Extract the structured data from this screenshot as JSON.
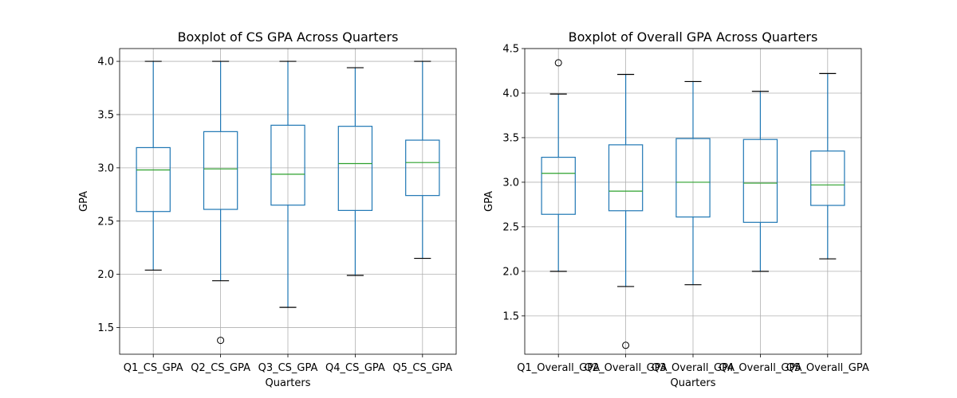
{
  "chart_data": [
    {
      "type": "boxplot",
      "title": "Boxplot of CS GPA Across Quarters",
      "xlabel": "Quarters",
      "ylabel": "GPA",
      "ylim": [
        1.25,
        4.12
      ],
      "yticks": [
        1.5,
        2.0,
        2.5,
        3.0,
        3.5,
        4.0
      ],
      "ytick_labels": [
        "1.5",
        "2.0",
        "2.5",
        "3.0",
        "3.5",
        "4.0"
      ],
      "grid": true,
      "categories": [
        "Q1_CS_GPA",
        "Q2_CS_GPA",
        "Q3_CS_GPA",
        "Q4_CS_GPA",
        "Q5_CS_GPA"
      ],
      "boxes": [
        {
          "whisker_low": 2.04,
          "q1": 2.59,
          "median": 2.98,
          "q3": 3.19,
          "whisker_high": 4.0,
          "outliers": []
        },
        {
          "whisker_low": 1.94,
          "q1": 2.61,
          "median": 2.99,
          "q3": 3.34,
          "whisker_high": 4.0,
          "outliers": [
            1.38
          ]
        },
        {
          "whisker_low": 1.69,
          "q1": 2.65,
          "median": 2.94,
          "q3": 3.4,
          "whisker_high": 4.0,
          "outliers": []
        },
        {
          "whisker_low": 1.99,
          "q1": 2.6,
          "median": 3.04,
          "q3": 3.39,
          "whisker_high": 3.94,
          "outliers": []
        },
        {
          "whisker_low": 2.15,
          "q1": 2.74,
          "median": 3.05,
          "q3": 3.26,
          "whisker_high": 4.0,
          "outliers": []
        }
      ]
    },
    {
      "type": "boxplot",
      "title": "Boxplot of Overall GPA Across Quarters",
      "xlabel": "Quarters",
      "ylabel": "GPA",
      "ylim": [
        1.07,
        4.5
      ],
      "yticks": [
        1.5,
        2.0,
        2.5,
        3.0,
        3.5,
        4.0,
        4.5
      ],
      "ytick_labels": [
        "1.5",
        "2.0",
        "2.5",
        "3.0",
        "3.5",
        "4.0",
        "4.5"
      ],
      "grid": true,
      "categories": [
        "Q1_Overall_GPA",
        "Q2_Overall_GPA",
        "Q3_Overall_GPA",
        "Q4_Overall_GPA",
        "Q5_Overall_GPA"
      ],
      "boxes": [
        {
          "whisker_low": 2.0,
          "q1": 2.64,
          "median": 3.1,
          "q3": 3.28,
          "whisker_high": 3.99,
          "outliers": [
            4.34
          ]
        },
        {
          "whisker_low": 1.83,
          "q1": 2.68,
          "median": 2.9,
          "q3": 3.42,
          "whisker_high": 4.21,
          "outliers": [
            1.17
          ]
        },
        {
          "whisker_low": 1.85,
          "q1": 2.61,
          "median": 3.0,
          "q3": 3.49,
          "whisker_high": 4.13,
          "outliers": []
        },
        {
          "whisker_low": 2.0,
          "q1": 2.55,
          "median": 2.99,
          "q3": 3.48,
          "whisker_high": 4.02,
          "outliers": []
        },
        {
          "whisker_low": 2.14,
          "q1": 2.74,
          "median": 2.97,
          "q3": 3.35,
          "whisker_high": 4.22,
          "outliers": []
        }
      ]
    }
  ]
}
